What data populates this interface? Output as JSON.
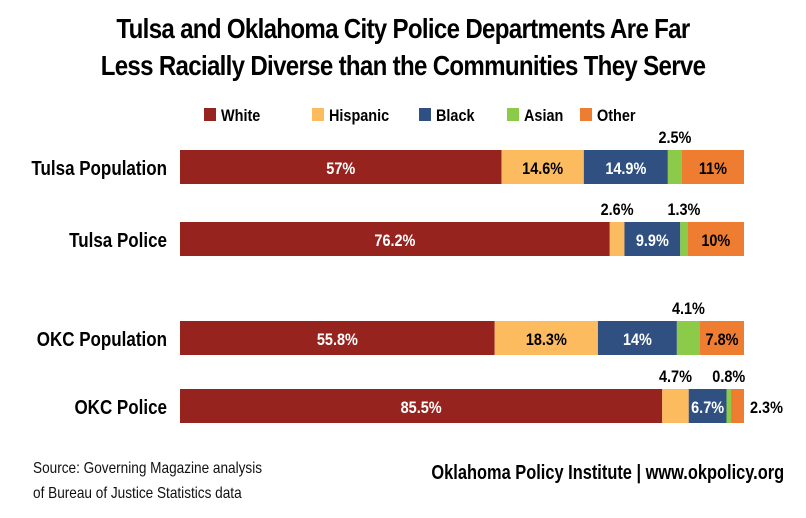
{
  "chart_data": {
    "type": "bar",
    "orientation": "horizontal",
    "stacked": true,
    "title": "Tulsa and Oklahoma City Police Departments Are Far Less Racially Diverse than the Communities They Serve",
    "title_lines": [
      "Tulsa and Oklahoma City Police Departments Are Far",
      "Less Racially Diverse than the Communities They Serve"
    ],
    "categories": [
      "Tulsa Population",
      "Tulsa Police",
      "OKC Population",
      "OKC Police"
    ],
    "series": [
      {
        "name": "White",
        "color": "#97231F",
        "values": [
          57,
          76.2,
          55.8,
          85.5
        ],
        "labels": [
          "57%",
          "76.2%",
          "55.8%",
          "85.5%"
        ]
      },
      {
        "name": "Hispanic",
        "color": "#FDBB5F",
        "values": [
          14.6,
          2.6,
          18.3,
          4.7
        ],
        "labels": [
          "14.6%",
          "2.6%",
          "18.3%",
          "4.7%"
        ]
      },
      {
        "name": "Black",
        "color": "#2F5080",
        "values": [
          14.9,
          9.9,
          14,
          6.7
        ],
        "labels": [
          "14.9%",
          "9.9%",
          "14%",
          "6.7%"
        ]
      },
      {
        "name": "Asian",
        "color": "#8CCB4A",
        "values": [
          2.5,
          1.3,
          4.1,
          0.8
        ],
        "labels": [
          "2.5%",
          "1.3%",
          "4.1%",
          "0.8%"
        ]
      },
      {
        "name": "Other",
        "color": "#EE7D31",
        "values": [
          11,
          10,
          7.8,
          2.3
        ],
        "labels": [
          "11%",
          "10%",
          "7.8%",
          "2.3%"
        ]
      }
    ],
    "xlim": [
      0,
      100
    ],
    "xlabel": "",
    "ylabel": "",
    "grid": false,
    "legend_position": "top"
  },
  "footer": {
    "source_line1": "Source: Governing Magazine analysis",
    "source_line2": "of Bureau of Justice Statistics data",
    "credit": "Oklahoma Policy Institute | www.okpolicy.org"
  }
}
